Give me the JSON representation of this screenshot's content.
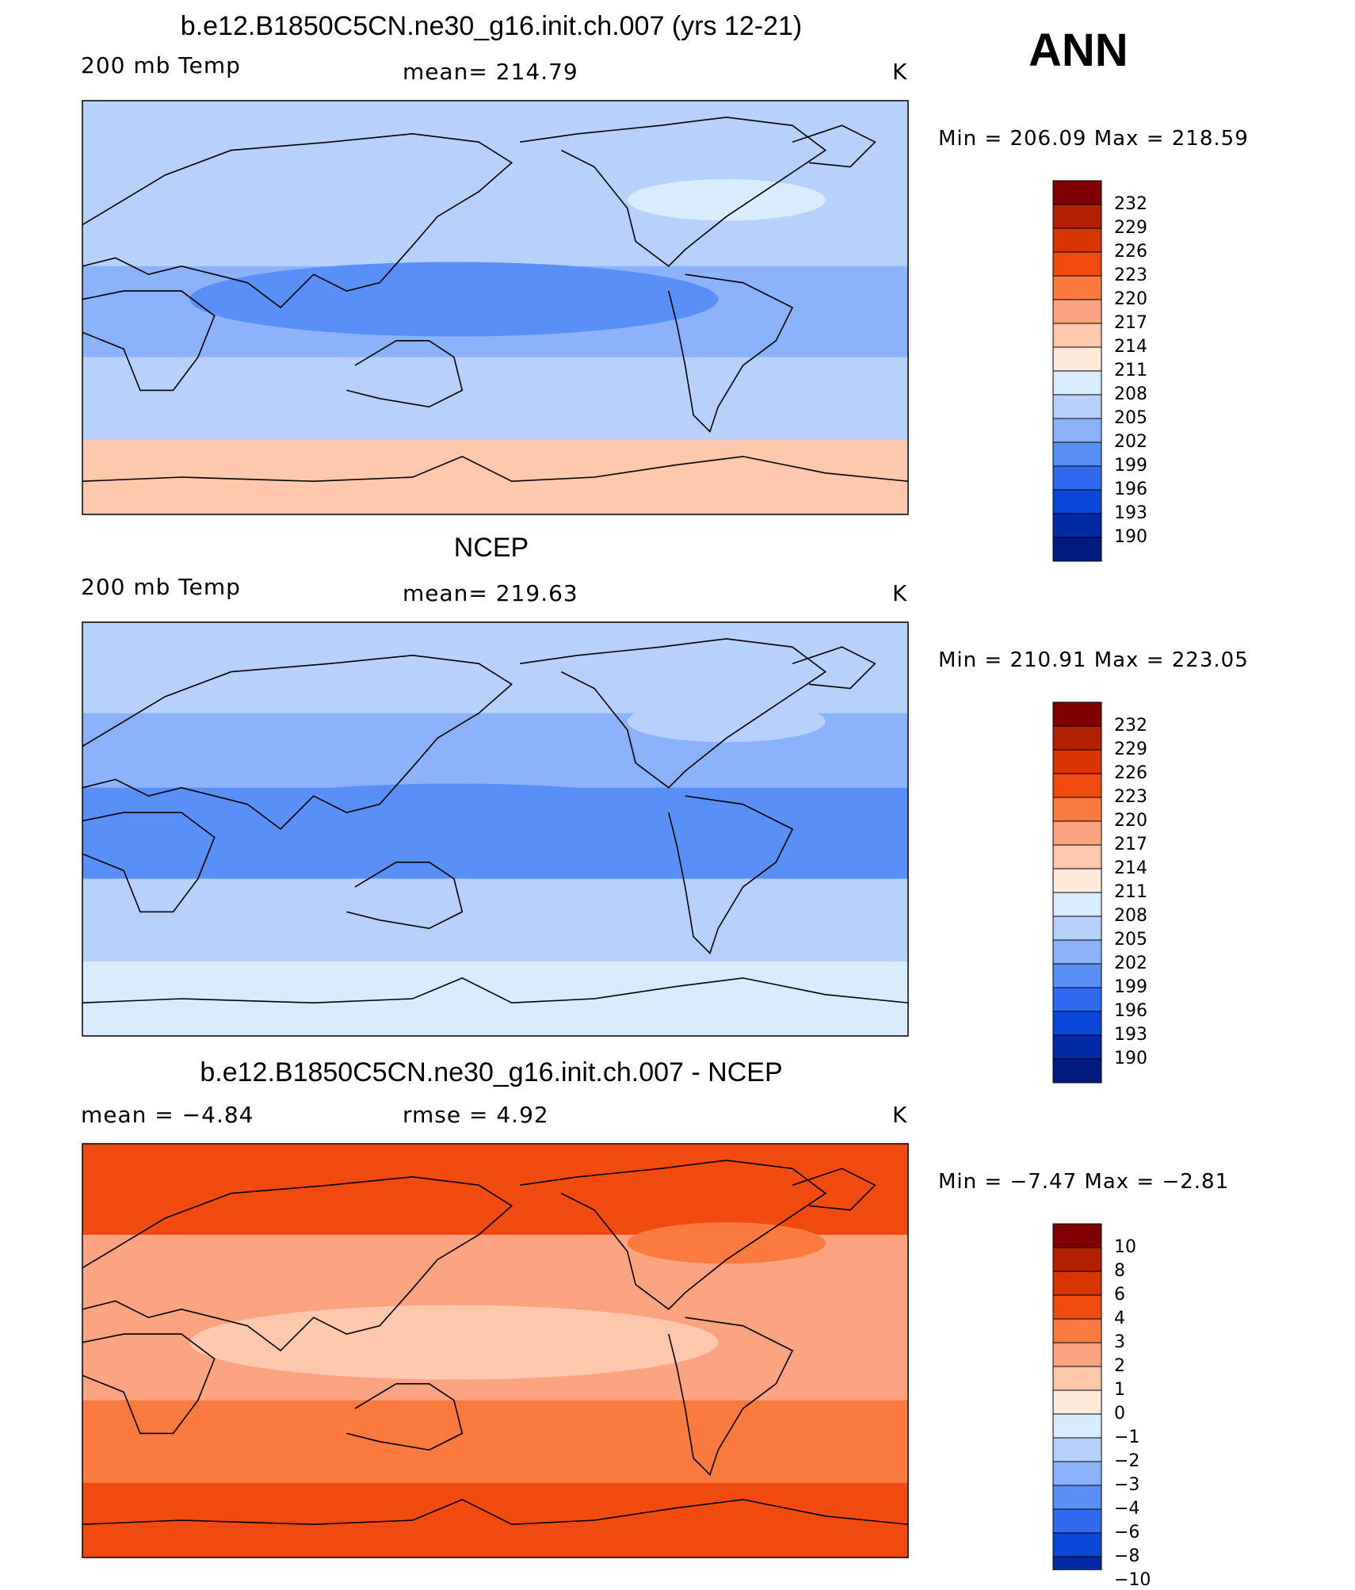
{
  "season": "ANN",
  "panels": [
    {
      "title": "b.e12.B1850C5CN.ne30_g16.init.ch.007 (yrs 12-21)",
      "left_label": "200 mb Temp",
      "center_label": "mean=  214.79",
      "units": "K",
      "minmax": "Min  =  206.09  Max  =  218.59",
      "colorbar": [
        "232",
        "229",
        "226",
        "223",
        "220",
        "217",
        "214",
        "211",
        "208",
        "205",
        "202",
        "199",
        "196",
        "193",
        "190"
      ],
      "fill_levels": [
        0.6,
        0.62,
        0.64,
        0.58,
        0.4
      ]
    },
    {
      "title": "NCEP",
      "left_label": "200 mb Temp",
      "center_label": "mean=  219.63",
      "units": "K",
      "minmax": "Min  =  210.91  Max  =  223.05",
      "colorbar": [
        "232",
        "229",
        "226",
        "223",
        "220",
        "217",
        "214",
        "211",
        "208",
        "205",
        "202",
        "199",
        "196",
        "193",
        "190"
      ],
      "fill_levels": [
        0.58,
        0.66,
        0.7,
        0.62,
        0.52
      ]
    },
    {
      "title": "b.e12.B1850C5CN.ne30_g16.init.ch.007 - NCEP",
      "left_label": "mean =     −4.84",
      "center_label": "rmse =      4.92",
      "units": "K",
      "minmax": "Min  =     −7.47  Max  =     −2.81",
      "colorbar": [
        "10",
        "8",
        "6",
        "4",
        "3",
        "2",
        "1",
        "0",
        "−1",
        "−2",
        "−3",
        "−4",
        "−6",
        "−8",
        "−10"
      ],
      "fill_levels": [
        0.2,
        0.3,
        0.34,
        0.28,
        0.18
      ]
    }
  ],
  "colors": {
    "scale": [
      "#7f0000",
      "#b22000",
      "#d93500",
      "#f04a10",
      "#fa7a40",
      "#fca482",
      "#fdc8ad",
      "#feeadb",
      "#d8ecfe",
      "#b7d1fc",
      "#8cb2fb",
      "#5a8ff7",
      "#2f6af0",
      "#0a47d8",
      "#0029a6",
      "#001a80"
    ]
  }
}
